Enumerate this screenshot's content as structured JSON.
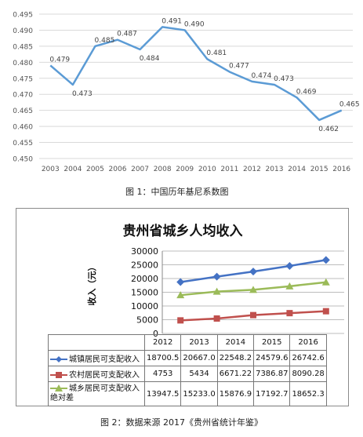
{
  "figure1": {
    "caption": "图 1：中国历年基尼系数图",
    "chart_data": {
      "type": "line",
      "title": "",
      "xlabel": "",
      "ylabel": "",
      "x": [
        "2003",
        "2004",
        "2005",
        "2006",
        "2007",
        "2008",
        "2009",
        "2010",
        "2011",
        "2012",
        "2013",
        "2014",
        "2015",
        "2016"
      ],
      "series": [
        {
          "values": [
            0.479,
            0.473,
            0.485,
            0.487,
            0.484,
            0.491,
            0.49,
            0.481,
            0.477,
            0.474,
            0.473,
            0.469,
            0.462,
            0.465
          ],
          "labels": [
            "0.479",
            "0.473",
            "0.485",
            "0.487",
            "0.484",
            "0.491",
            "0.490",
            "0.481",
            "0.477",
            "0.474",
            "0.473",
            "0.469",
            "0.462",
            "0.465"
          ]
        }
      ],
      "ylim": [
        0.45,
        0.495
      ],
      "yticks": [
        "0.450",
        "0.455",
        "0.460",
        "0.465",
        "0.470",
        "0.475",
        "0.480",
        "0.485",
        "0.490",
        "0.495"
      ],
      "grid": true,
      "color": "#5b9bd5"
    }
  },
  "figure2": {
    "title": "贵州省城乡人均收入",
    "ylabel": "收入（元）",
    "caption": "图 2：数据来源 2017《贵州省统计年鉴》",
    "chart_data": {
      "type": "line",
      "title": "贵州省城乡人均收入",
      "ylabel": "收入（元）",
      "categories": [
        "2012",
        "2013",
        "2014",
        "2015",
        "2016"
      ],
      "ylim": [
        0,
        30000
      ],
      "yticks": [
        "0",
        "5000",
        "10000",
        "15000",
        "20000",
        "25000",
        "30000"
      ],
      "grid": true,
      "legend": "table-bottom",
      "series": [
        {
          "name": "城镇居民可支配收入",
          "values": [
            18700.5,
            20667.0,
            22548.2,
            24579.6,
            26742.6
          ],
          "labels": [
            "18700.5",
            "20667.0",
            "22548.2",
            "24579.6",
            "26742.6"
          ],
          "color": "#4472c4",
          "marker": "diamond"
        },
        {
          "name": "农村居民可支配收入",
          "values": [
            4753,
            5434,
            6671.22,
            7386.87,
            8090.28
          ],
          "labels": [
            "4753",
            "5434",
            "6671.22",
            "7386.87",
            "8090.28"
          ],
          "color": "#c0504d",
          "marker": "square"
        },
        {
          "name": "城乡居民可支配收入绝对差",
          "values": [
            13947.5,
            15233.0,
            15876.9,
            17192.7,
            18652.3
          ],
          "labels": [
            "13947.5",
            "15233.0",
            "15876.9",
            "17192.7",
            "18652.3"
          ],
          "color": "#9bbb59",
          "marker": "triangle"
        }
      ]
    }
  }
}
